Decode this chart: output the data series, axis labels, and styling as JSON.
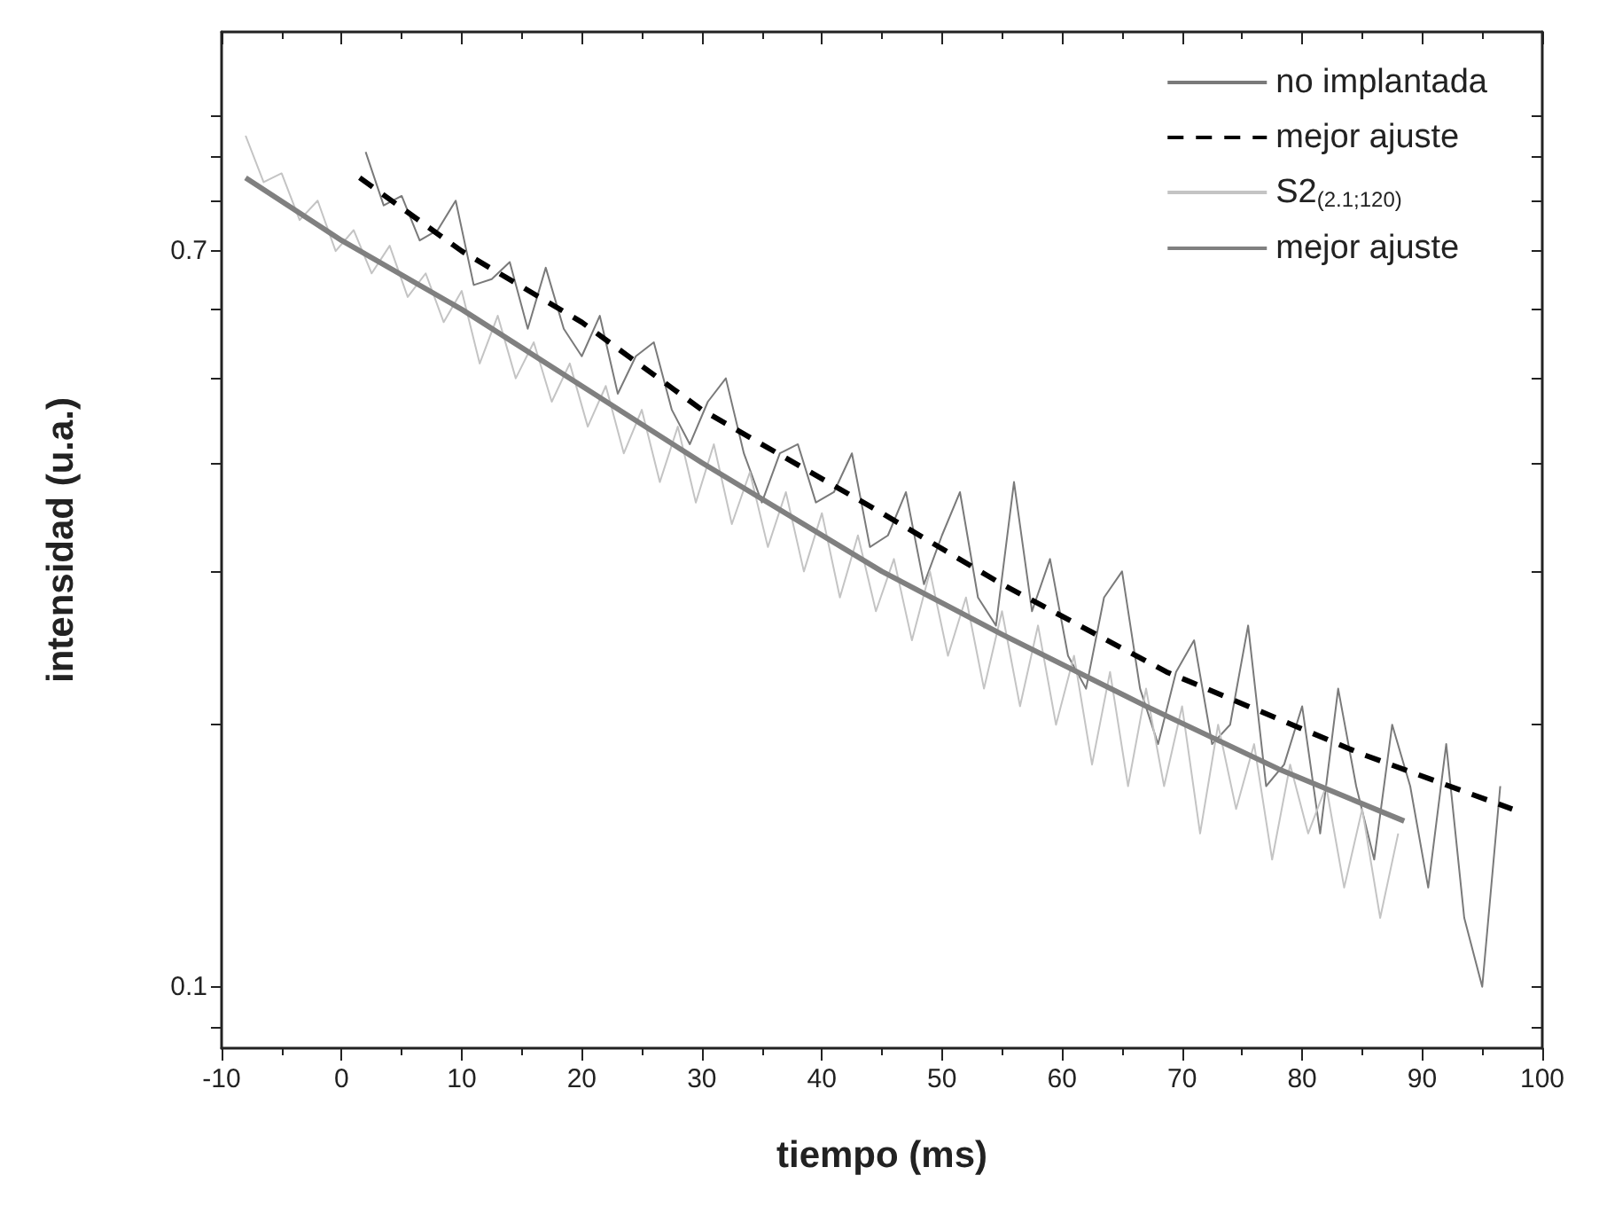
{
  "chart_data": {
    "type": "line",
    "xlabel": "tiempo (ms)",
    "ylabel": "intensidad (u.a.)",
    "log": "y",
    "grid": false,
    "legend": "top right",
    "marker": "none",
    "xlim": [
      -10,
      100
    ],
    "xticks": [
      -10,
      0,
      10,
      20,
      30,
      40,
      50,
      60,
      70,
      80,
      90,
      100
    ],
    "ylim": [
      0.085,
      1.25
    ],
    "yticks": [
      {
        "value": 0.09,
        "label": null
      },
      0.1,
      {
        "value": 0.2,
        "label": null
      },
      {
        "value": 0.3,
        "label": null
      },
      {
        "value": 0.4,
        "label": null
      },
      {
        "value": 0.5,
        "label": null
      },
      {
        "value": 0.6,
        "label": null
      },
      0.7,
      {
        "value": 0.8,
        "label": null
      },
      {
        "value": 0.9,
        "label": null
      },
      {
        "value": 1,
        "label": null
      }
    ],
    "series": [
      {
        "name": "no implantada",
        "color": "#7a7a7a",
        "line_style": "solid",
        "x": [
          2,
          3.5,
          5,
          6.5,
          8,
          9.5,
          11,
          12.5,
          14,
          15.5,
          17,
          18.5,
          20,
          21.5,
          23,
          24.5,
          26,
          27.5,
          29,
          30.5,
          32,
          33.5,
          35,
          36.5,
          38,
          39.5,
          41,
          42.5,
          44,
          45.5,
          47,
          48.5,
          50,
          51.5,
          53,
          54.5,
          56,
          57.5,
          59,
          60.5,
          62,
          63.5,
          65,
          66.5,
          68,
          69.5,
          71,
          72.5,
          74,
          75.5,
          77,
          78.5,
          80,
          81.5,
          83,
          84.5,
          86,
          87.5,
          89,
          90.5,
          92,
          93.5,
          95,
          96.5
        ],
        "values": [
          0.91,
          0.79,
          0.81,
          0.72,
          0.74,
          0.8,
          0.64,
          0.65,
          0.68,
          0.57,
          0.67,
          0.57,
          0.53,
          0.59,
          0.48,
          0.53,
          0.55,
          0.46,
          0.42,
          0.47,
          0.5,
          0.41,
          0.36,
          0.41,
          0.42,
          0.36,
          0.37,
          0.41,
          0.32,
          0.33,
          0.37,
          0.29,
          0.33,
          0.37,
          0.28,
          0.26,
          0.38,
          0.27,
          0.31,
          0.24,
          0.22,
          0.28,
          0.3,
          0.22,
          0.19,
          0.23,
          0.25,
          0.19,
          0.2,
          0.26,
          0.17,
          0.18,
          0.21,
          0.15,
          0.22,
          0.17,
          0.14,
          0.2,
          0.17,
          0.13,
          0.19,
          0.12,
          0.1,
          0.17
        ]
      },
      {
        "name": "mejor ajuste",
        "color": "#000000",
        "line_style": "dashed",
        "x": [
          1.5,
          10,
          20,
          30,
          45,
          55,
          68.7,
          85,
          97.5
        ],
        "values": [
          0.85,
          0.7,
          0.58,
          0.46,
          0.35,
          0.29,
          0.23,
          0.185,
          0.16
        ]
      },
      {
        "name": "S2$_{(2.1;120)}$",
        "color": "#c4c4c4",
        "line_style": "solid",
        "x": [
          -8,
          -6.5,
          -5,
          -3.5,
          -2,
          -0.5,
          1,
          2.5,
          4,
          5.5,
          7,
          8.5,
          10,
          11.5,
          13,
          14.5,
          16,
          17.5,
          19,
          20.5,
          22,
          23.5,
          25,
          26.5,
          28,
          29.5,
          31,
          32.5,
          34,
          35.5,
          37,
          38.5,
          40,
          41.5,
          43,
          44.5,
          46,
          47.5,
          49,
          50.5,
          52,
          53.5,
          55,
          56.5,
          58,
          59.5,
          61,
          62.5,
          64,
          65.5,
          67,
          68.5,
          70,
          71.5,
          73,
          74.5,
          76,
          77.5,
          79,
          80.5,
          82,
          83.5,
          85,
          86.5,
          88
        ],
        "values": [
          0.95,
          0.84,
          0.86,
          0.76,
          0.8,
          0.7,
          0.74,
          0.66,
          0.71,
          0.62,
          0.66,
          0.58,
          0.63,
          0.52,
          0.59,
          0.5,
          0.55,
          0.47,
          0.52,
          0.44,
          0.49,
          0.41,
          0.46,
          0.38,
          0.44,
          0.36,
          0.42,
          0.34,
          0.39,
          0.32,
          0.37,
          0.3,
          0.35,
          0.28,
          0.33,
          0.27,
          0.31,
          0.25,
          0.3,
          0.24,
          0.28,
          0.22,
          0.27,
          0.21,
          0.26,
          0.2,
          0.24,
          0.18,
          0.23,
          0.17,
          0.22,
          0.17,
          0.21,
          0.15,
          0.2,
          0.16,
          0.19,
          0.14,
          0.18,
          0.15,
          0.17,
          0.13,
          0.16,
          0.12,
          0.15
        ]
      },
      {
        "name": "mejor ajuste",
        "color": "#808080",
        "line_style": "solid",
        "x": [
          -8,
          0,
          10,
          20,
          30,
          45,
          55,
          67,
          78,
          88.5
        ],
        "values": [
          0.85,
          0.72,
          0.6,
          0.49,
          0.4,
          0.3,
          0.254,
          0.21,
          0.178,
          0.155
        ]
      }
    ]
  }
}
